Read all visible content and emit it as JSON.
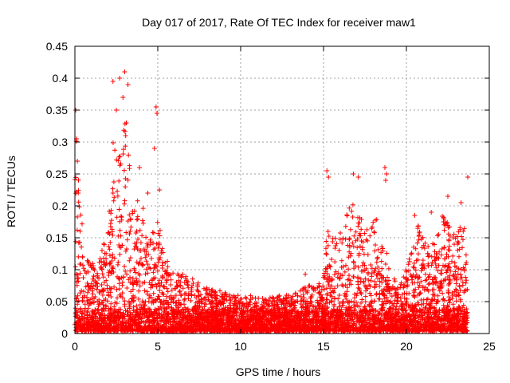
{
  "chart_data": {
    "type": "scatter",
    "title": "Day 017 of 2017, Rate Of TEC Index for receiver maw1",
    "xlabel": "GPS time / hours",
    "ylabel": "ROTI / TECUs",
    "xlim": [
      0,
      25
    ],
    "ylim": [
      0,
      0.45
    ],
    "xticks": [
      "0",
      "5",
      "10",
      "15",
      "20",
      "25"
    ],
    "yticks": [
      "0",
      "0.05",
      "0.1",
      "0.15",
      "0.2",
      "0.25",
      "0.3",
      "0.35",
      "0.4",
      "0.45"
    ],
    "grid": true,
    "marker": "+",
    "color": "#ff0000",
    "envelope": {
      "description_hours": [
        0,
        23.7
      ],
      "x": [
        0.0,
        0.2,
        0.5,
        1.0,
        1.5,
        2.0,
        2.3,
        2.6,
        3.0,
        3.3,
        3.6,
        4.0,
        4.5,
        4.9,
        5.3,
        5.8,
        6.5,
        7.5,
        8.5,
        9.5,
        10.5,
        11.5,
        12.5,
        13.5,
        14.0,
        14.5,
        15.0,
        15.3,
        15.7,
        16.2,
        16.8,
        17.3,
        17.8,
        18.3,
        18.7,
        19.2,
        19.7,
        20.2,
        20.7,
        21.2,
        21.7,
        22.2,
        22.6,
        23.0,
        23.4,
        23.7
      ],
      "y": [
        0.3,
        0.33,
        0.13,
        0.11,
        0.12,
        0.17,
        0.3,
        0.27,
        0.35,
        0.27,
        0.2,
        0.22,
        0.15,
        0.2,
        0.14,
        0.1,
        0.095,
        0.08,
        0.07,
        0.06,
        0.06,
        0.055,
        0.06,
        0.065,
        0.08,
        0.07,
        0.1,
        0.2,
        0.17,
        0.17,
        0.22,
        0.18,
        0.16,
        0.2,
        0.14,
        0.09,
        0.08,
        0.12,
        0.17,
        0.15,
        0.14,
        0.19,
        0.17,
        0.15,
        0.2,
        0.1
      ]
    },
    "peaks": [
      {
        "x": 0.05,
        "y": 0.35
      },
      {
        "x": 0.1,
        "y": 0.305
      },
      {
        "x": 0.15,
        "y": 0.27
      },
      {
        "x": 0.2,
        "y": 0.22
      },
      {
        "x": 2.3,
        "y": 0.395
      },
      {
        "x": 2.7,
        "y": 0.4
      },
      {
        "x": 3.0,
        "y": 0.41
      },
      {
        "x": 3.2,
        "y": 0.39
      },
      {
        "x": 2.9,
        "y": 0.37
      },
      {
        "x": 2.5,
        "y": 0.35
      },
      {
        "x": 3.1,
        "y": 0.33
      },
      {
        "x": 4.9,
        "y": 0.355
      },
      {
        "x": 4.95,
        "y": 0.345
      },
      {
        "x": 4.8,
        "y": 0.29
      },
      {
        "x": 3.9,
        "y": 0.26
      },
      {
        "x": 4.4,
        "y": 0.22
      },
      {
        "x": 5.1,
        "y": 0.225
      },
      {
        "x": 15.2,
        "y": 0.255
      },
      {
        "x": 15.3,
        "y": 0.245
      },
      {
        "x": 16.8,
        "y": 0.25
      },
      {
        "x": 17.1,
        "y": 0.245
      },
      {
        "x": 18.7,
        "y": 0.26
      },
      {
        "x": 18.8,
        "y": 0.25
      },
      {
        "x": 18.75,
        "y": 0.24
      },
      {
        "x": 22.5,
        "y": 0.215
      },
      {
        "x": 23.3,
        "y": 0.205
      },
      {
        "x": 23.7,
        "y": 0.245
      },
      {
        "x": 21.5,
        "y": 0.19
      },
      {
        "x": 20.5,
        "y": 0.185
      },
      {
        "x": 13.9,
        "y": 0.093
      }
    ]
  }
}
